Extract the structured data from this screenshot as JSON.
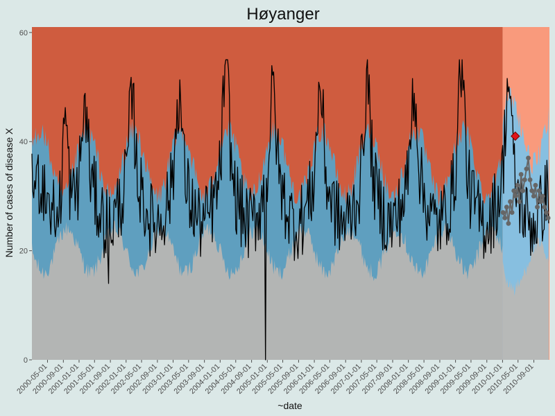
{
  "chart_data": {
    "type": "line",
    "title": "Høyanger",
    "xlabel": "~date",
    "ylabel": "Number of cases of disease X",
    "ylim": [
      0,
      61
    ],
    "yticks": [
      0,
      20,
      40,
      60
    ],
    "xlim": [
      "2000-01-01",
      "2010-12-31"
    ],
    "xticks": [
      "2000-05-01",
      "2000-09-01",
      "2001-01-01",
      "2001-05-01",
      "2001-09-01",
      "2002-01-01",
      "2002-05-01",
      "2002-09-01",
      "2003-01-01",
      "2003-05-01",
      "2003-09-01",
      "2004-01-01",
      "2004-05-01",
      "2004-09-01",
      "2005-01-01",
      "2005-05-01",
      "2005-09-01",
      "2006-01-01",
      "2006-05-01",
      "2006-09-01",
      "2007-01-01",
      "2007-05-01",
      "2007-09-01",
      "2008-01-01",
      "2008-05-01",
      "2008-09-01",
      "2009-01-01",
      "2009-05-01",
      "2009-09-01",
      "2010-01-01",
      "2010-05-01",
      "2010-09-01"
    ],
    "prediction_start": "2010-01-01",
    "grid": false,
    "colors": {
      "background": "#dbe8e7",
      "normal_band": "#b3b5b4",
      "expected_band": "#5f9fbf",
      "expected_band_light": "#87bfe0",
      "high_band": "#cf5c3f",
      "high_band_light": "#f99a7c",
      "observed_line": "#000000",
      "forecast_points": "#666666",
      "outbreak_marker": "#e0141a"
    },
    "bands": {
      "lower_threshold": {
        "mean": 20,
        "amplitude": 4,
        "trough_month": 3,
        "noise": 1.6
      },
      "upper_threshold": {
        "mean": 36,
        "amplitude": 6,
        "peak_month": 2,
        "noise": 2.2
      }
    },
    "series": [
      {
        "role": "observed",
        "x_start": "2000-01-01",
        "x_end": "2010-12-31",
        "seasonal_peaks": [
          {
            "date": "2000-09-15",
            "value": 44
          },
          {
            "date": "2001-02-15",
            "value": 46
          },
          {
            "date": "2002-02-15",
            "value": 47
          },
          {
            "date": "2003-02-15",
            "value": 49
          },
          {
            "date": "2004-02-15",
            "value": 55
          },
          {
            "date": "2005-02-15",
            "value": 49
          },
          {
            "date": "2006-02-15",
            "value": 50
          },
          {
            "date": "2007-02-15",
            "value": 51
          },
          {
            "date": "2008-02-15",
            "value": 50
          },
          {
            "date": "2009-02-15",
            "value": 55
          },
          {
            "date": "2010-02-15",
            "value": 51
          }
        ],
        "baseline_mean": 29,
        "seasonal_amplitude": 9,
        "anomalies": [
          {
            "date": "2001-08-20",
            "value": 14
          },
          {
            "date": "2004-12-20",
            "value": 0
          }
        ],
        "range": [
          0,
          55
        ]
      },
      {
        "role": "forecast",
        "x": [
          "2010-01-05",
          "2010-01-19",
          "2010-02-02",
          "2010-02-16",
          "2010-03-02",
          "2010-03-16",
          "2010-03-30",
          "2010-04-13",
          "2010-04-27",
          "2010-05-11",
          "2010-05-25",
          "2010-06-08",
          "2010-06-22",
          "2010-07-06",
          "2010-07-20",
          "2010-08-03",
          "2010-08-17",
          "2010-08-31",
          "2010-09-14",
          "2010-09-28",
          "2010-10-12",
          "2010-10-26",
          "2010-11-09",
          "2010-11-23",
          "2010-12-07",
          "2010-12-21"
        ],
        "values": [
          27,
          26,
          28,
          25,
          29,
          27,
          31,
          30,
          32,
          29,
          34,
          31,
          33,
          35,
          37,
          33,
          31,
          30,
          32,
          28,
          31,
          29,
          30,
          28,
          27,
          26
        ]
      },
      {
        "role": "outbreak",
        "x": [
          "2010-04-10"
        ],
        "values": [
          41
        ]
      }
    ]
  }
}
